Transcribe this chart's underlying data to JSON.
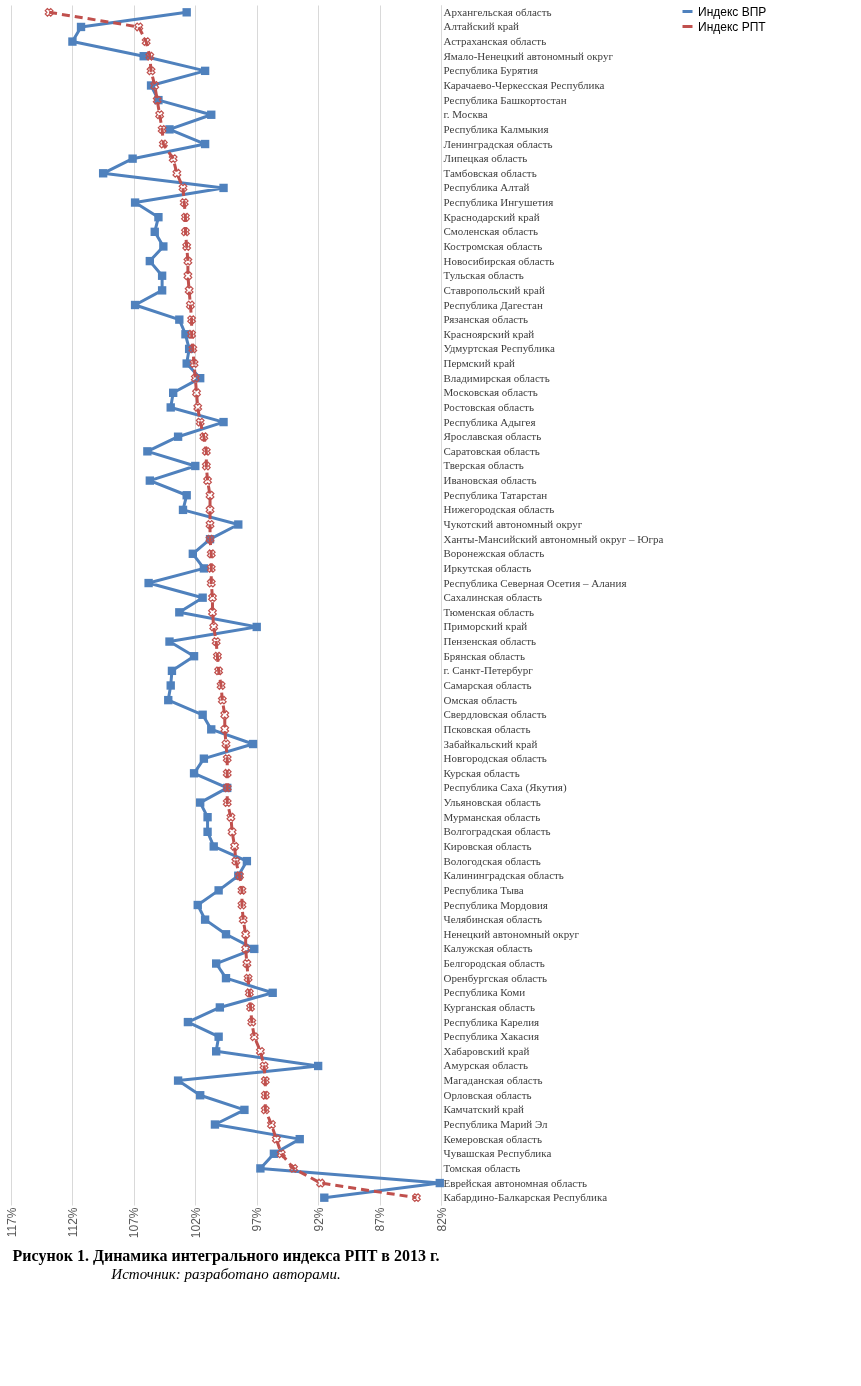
{
  "chart_data": {
    "type": "line",
    "orientation": "horizontal",
    "title": "Рисунок 1. Динамика интегрального индекса РПТ в 2013 г.",
    "annotations": [
      "Источник: разработано авторами."
    ],
    "categories": [
      "Архангельская область",
      "Алтайский край",
      "Астраханская область",
      "Ямало-Ненецкий автономный округ",
      "Республика Бурятия",
      "Карачаево-Черкесская Республика",
      "Республика Башкортостан",
      "г. Москва",
      "Республика Калмыкия",
      "Ленинградская область",
      "Липецкая область",
      "Тамбовская область",
      "Республика Алтай",
      "Республика Ингушетия",
      "Краснодарский край",
      "Смоленская область",
      "Костромская область",
      "Новосибирская область",
      "Тульская область",
      "Ставропольский край",
      "Республика Дагестан",
      "Рязанская область",
      "Красноярский край",
      "Удмуртская Республика",
      "Пермский край",
      "Владимирская область",
      "Московская область",
      "Ростовская область",
      "Республика Адыгея",
      "Ярославская область",
      "Саратовская область",
      "Тверская область",
      "Ивановская область",
      "Республика Татарстан",
      "Нижегородская область",
      "Чукотский автономный округ",
      "Ханты-Мансийский автономный округ – Югра",
      "Воронежская область",
      "Иркутская область",
      "Республика Северная Осетия – Алания",
      "Сахалинская область",
      "Тюменская область",
      "Приморский край",
      "Пензенская область",
      "Брянская область",
      "г. Санкт-Петербург",
      "Самарская область",
      "Омская область",
      "Свердловская область",
      "Псковская область",
      "Забайкальский край",
      "Новгородская область",
      "Курская область",
      "Республика Саха (Якутия)",
      "Ульяновская область",
      "Мурманская область",
      "Волгоградская область",
      "Кировская область",
      "Вологодская область",
      "Калининградская область",
      "Республика Тыва",
      "Республика Мордовия",
      "Челябинская область",
      "Ненецкий автономный округ",
      "Калужская область",
      "Белгородская область",
      "Оренбургская область",
      "Республика Коми",
      "Курганская область",
      "Республика Карелия",
      "Республика Хакасия",
      "Хабаровский край",
      "Амурская область",
      "Магаданская область",
      "Орловская область",
      "Камчатский край",
      "Республика Марий Эл",
      "Кемеровская область",
      "Чувашская Республика",
      "Томская область",
      "Еврейская автономная область",
      "Кабардино-Балкарская Республика"
    ],
    "series": [
      {
        "name": "Индекс ВПР",
        "color": "#4f81bd",
        "marker": "square",
        "line_style": "solid",
        "values": [
          102.7,
          111.3,
          112.0,
          106.2,
          101.2,
          105.6,
          105.0,
          100.7,
          104.1,
          101.2,
          107.1,
          109.5,
          99.7,
          106.9,
          105.0,
          105.3,
          104.6,
          105.7,
          104.7,
          104.7,
          106.9,
          103.3,
          102.8,
          102.5,
          102.7,
          101.6,
          103.8,
          104.0,
          99.7,
          103.4,
          105.9,
          102.0,
          105.7,
          102.7,
          103.0,
          98.5,
          100.8,
          102.2,
          101.3,
          105.8,
          101.4,
          103.3,
          97.0,
          104.1,
          102.1,
          103.9,
          104.0,
          104.2,
          101.4,
          100.7,
          97.3,
          101.3,
          102.1,
          99.4,
          101.6,
          101.0,
          101.0,
          100.5,
          97.8,
          98.5,
          100.1,
          101.8,
          101.2,
          99.5,
          97.2,
          100.3,
          99.5,
          95.7,
          100.0,
          102.6,
          100.1,
          100.3,
          92.0,
          103.4,
          101.6,
          98.0,
          100.4,
          93.5,
          95.6,
          96.7,
          82.1,
          91.5
        ]
      },
      {
        "name": "Индекс РПТ",
        "color": "#c0504d",
        "marker": "cross",
        "line_style": "dashed",
        "values": [
          113.9,
          106.6,
          106.0,
          105.7,
          105.6,
          105.3,
          105.1,
          104.9,
          104.7,
          104.6,
          103.8,
          103.5,
          103.0,
          102.9,
          102.8,
          102.8,
          102.7,
          102.6,
          102.6,
          102.5,
          102.4,
          102.3,
          102.3,
          102.2,
          102.1,
          102.0,
          101.9,
          101.8,
          101.6,
          101.3,
          101.1,
          101.1,
          101.0,
          100.8,
          100.8,
          100.8,
          100.8,
          100.7,
          100.7,
          100.7,
          100.6,
          100.6,
          100.5,
          100.3,
          100.2,
          100.1,
          99.9,
          99.8,
          99.6,
          99.6,
          99.5,
          99.4,
          99.4,
          99.4,
          99.4,
          99.1,
          99.0,
          98.8,
          98.7,
          98.4,
          98.2,
          98.2,
          98.1,
          97.9,
          97.9,
          97.8,
          97.7,
          97.6,
          97.5,
          97.4,
          97.2,
          96.7,
          96.4,
          96.3,
          96.3,
          96.3,
          95.8,
          95.4,
          95.0,
          94.0,
          91.8,
          84.0
        ]
      }
    ],
    "xlim": [
      117,
      82
    ],
    "xticks": [
      {
        "value": 117,
        "label": "117%"
      },
      {
        "value": 112,
        "label": "112%"
      },
      {
        "value": 107,
        "label": "107%"
      },
      {
        "value": 102,
        "label": "102%"
      },
      {
        "value": 97,
        "label": "97%"
      },
      {
        "value": 92,
        "label": "92%"
      },
      {
        "value": 87,
        "label": "87%"
      },
      {
        "value": 82,
        "label": "82%"
      }
    ],
    "grid": "x",
    "legend": "right"
  }
}
